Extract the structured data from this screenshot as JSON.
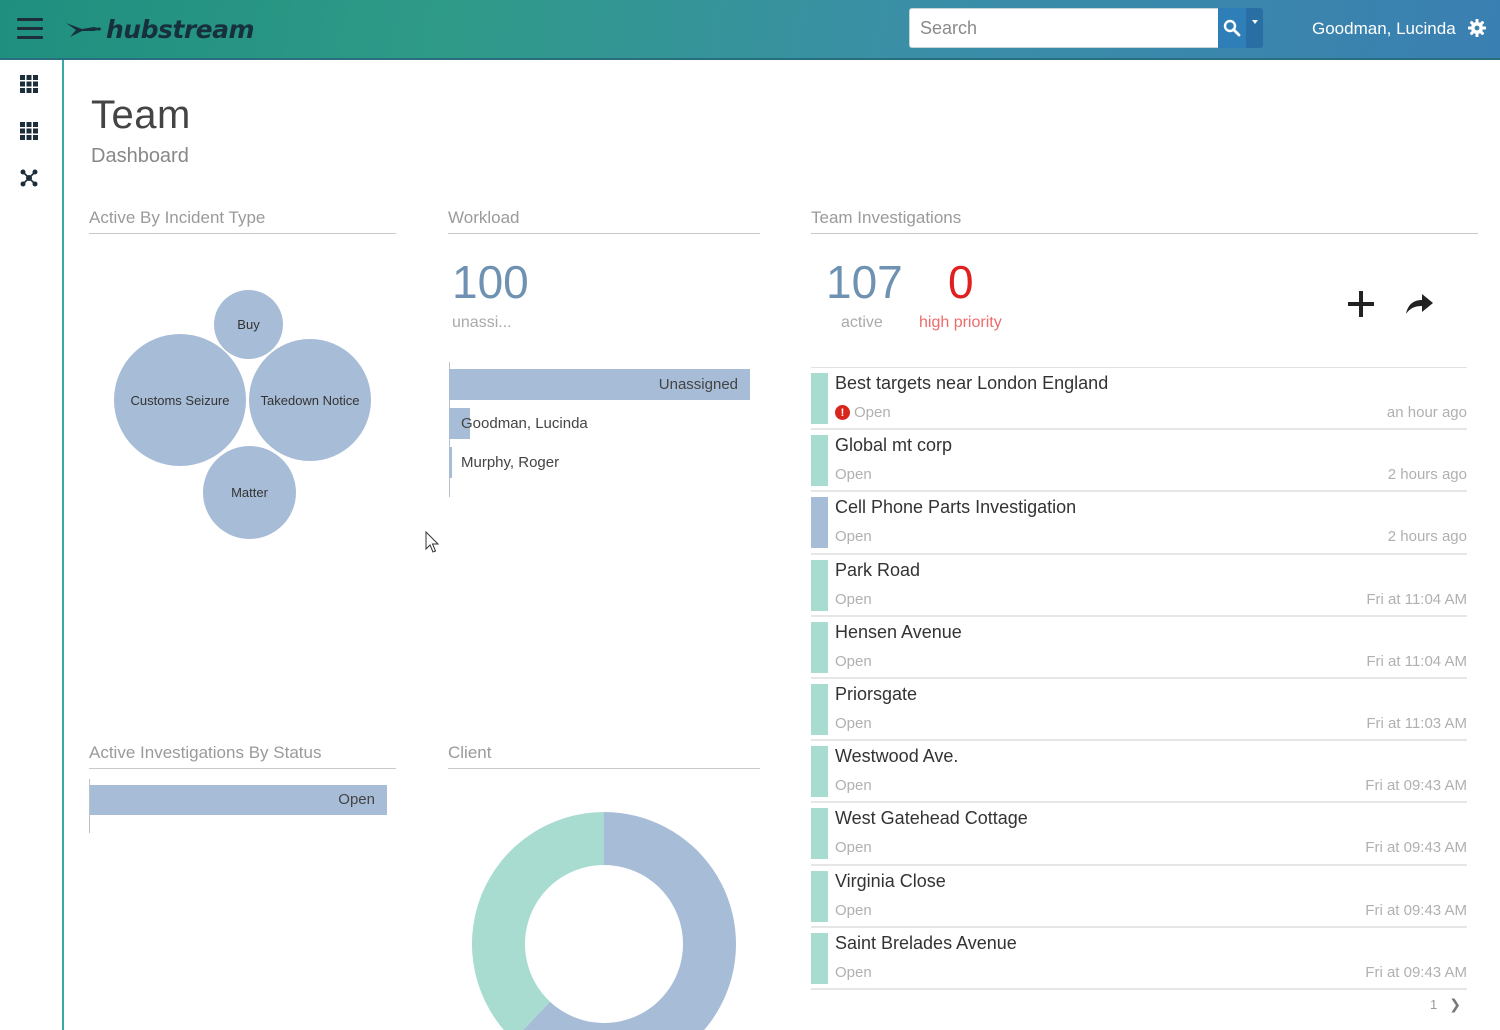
{
  "app": {
    "logo_text": "hubstream"
  },
  "header": {
    "search_placeholder": "Search",
    "user_name": "Goodman, Lucinda"
  },
  "page": {
    "title": "Team",
    "subtitle": "Dashboard"
  },
  "sections": {
    "incident_type": "Active By Incident Type",
    "workload": "Workload",
    "team_investigations": "Team Investigations",
    "by_status": "Active Investigations By Status",
    "client": "Client"
  },
  "incident_bubbles": [
    "Buy",
    "Customs Seizure",
    "Takedown Notice",
    "Matter"
  ],
  "workload": {
    "count": "100",
    "count_label": "unassi...",
    "bars": [
      {
        "label": "Unassigned",
        "value": 100
      },
      {
        "label": "Goodman, Lucinda",
        "value": 7
      },
      {
        "label": "Murphy, Roger",
        "value": 1
      }
    ]
  },
  "team": {
    "active_count": "107",
    "active_label": "active",
    "priority_count": "0",
    "priority_label": "high priority"
  },
  "investigations": [
    {
      "title": "Best targets near London England",
      "status": "Open",
      "time": "an hour ago",
      "alert": true,
      "color": "#a8dcd1"
    },
    {
      "title": "Global mt corp",
      "status": "Open",
      "time": "2 hours ago",
      "alert": false,
      "color": "#a8dcd1"
    },
    {
      "title": "Cell Phone Parts Investigation",
      "status": "Open",
      "time": "2 hours ago",
      "alert": false,
      "color": "#a7bcd7"
    },
    {
      "title": "Park Road",
      "status": "Open",
      "time": "Fri at 11:04 AM",
      "alert": false,
      "color": "#a8dcd1"
    },
    {
      "title": "Hensen Avenue",
      "status": "Open",
      "time": "Fri at 11:04 AM",
      "alert": false,
      "color": "#a8dcd1"
    },
    {
      "title": "Priorsgate",
      "status": "Open",
      "time": "Fri at 11:03 AM",
      "alert": false,
      "color": "#a8dcd1"
    },
    {
      "title": "Westwood Ave.",
      "status": "Open",
      "time": "Fri at 09:43 AM",
      "alert": false,
      "color": "#a8dcd1"
    },
    {
      "title": "West Gatehead Cottage",
      "status": "Open",
      "time": "Fri at 09:43 AM",
      "alert": false,
      "color": "#a8dcd1"
    },
    {
      "title": "Virginia Close",
      "status": "Open",
      "time": "Fri at 09:43 AM",
      "alert": false,
      "color": "#a8dcd1"
    },
    {
      "title": "Saint Brelades Avenue",
      "status": "Open",
      "time": "Fri at 09:43 AM",
      "alert": false,
      "color": "#a8dcd1"
    }
  ],
  "status_bars": [
    {
      "label": "Open",
      "value": 107
    }
  ],
  "pager": {
    "page": "1"
  },
  "colors": {
    "blue_series": "#a7bcd7",
    "teal_series": "#a8dcd1",
    "alert": "#e01f1f"
  },
  "chart_data": [
    {
      "type": "bubble",
      "categories": [
        "Buy",
        "Customs Seizure",
        "Takedown Notice",
        "Matter"
      ]
    },
    {
      "type": "bar",
      "orientation": "horizontal",
      "categories": [
        "Unassigned",
        "Goodman, Lucinda",
        "Murphy, Roger"
      ],
      "values": [
        100,
        7,
        1
      ]
    },
    {
      "type": "bar",
      "orientation": "horizontal",
      "categories": [
        "Open"
      ],
      "values": [
        107
      ]
    },
    {
      "type": "pie",
      "donut": true,
      "slices": [
        {
          "color": "#a7bcd7",
          "value": 62
        },
        {
          "color": "#a8dcd1",
          "value": 38
        }
      ]
    }
  ]
}
